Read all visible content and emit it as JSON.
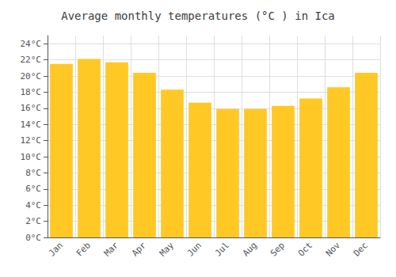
{
  "chart_data": {
    "type": "bar",
    "title": "Average monthly temperatures (°C ) in Ica",
    "categories": [
      "Jan",
      "Feb",
      "Mar",
      "Apr",
      "May",
      "Jun",
      "Jul",
      "Aug",
      "Sep",
      "Oct",
      "Nov",
      "Dec"
    ],
    "values": [
      21.5,
      22.1,
      21.7,
      20.4,
      18.3,
      16.7,
      15.9,
      15.9,
      16.3,
      17.2,
      18.6,
      20.4
    ],
    "color": "#FFC825",
    "ylim": [
      0,
      25
    ],
    "yticks": [
      {
        "value": 0,
        "label": "0°C"
      },
      {
        "value": 2,
        "label": "2°C"
      },
      {
        "value": 4,
        "label": "4°C"
      },
      {
        "value": 6,
        "label": "6°C"
      },
      {
        "value": 8,
        "label": "8°C"
      },
      {
        "value": 10,
        "label": "10°C"
      },
      {
        "value": 12,
        "label": "12°C"
      },
      {
        "value": 14,
        "label": "14°C"
      },
      {
        "value": 16,
        "label": "16°C"
      },
      {
        "value": 18,
        "label": "18°C"
      },
      {
        "value": 20,
        "label": "20°C"
      },
      {
        "value": 22,
        "label": "22°C"
      },
      {
        "value": 24,
        "label": "24°C"
      }
    ],
    "grid": true
  }
}
